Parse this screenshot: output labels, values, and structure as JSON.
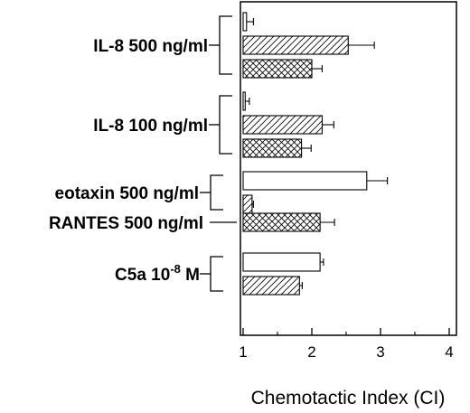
{
  "chart_data": {
    "type": "bar",
    "orientation": "horizontal",
    "xlabel": "Chemotactic Index (CI)",
    "xlim": [
      1,
      4
    ],
    "x_ticks": [
      "1",
      "2",
      "3",
      "4"
    ],
    "grid": false,
    "legend": "none",
    "groups": [
      {
        "label": "IL-8 500 ng/ml",
        "bars": [
          {
            "value": 1.05,
            "error": 0.1,
            "pattern": "open"
          },
          {
            "value": 2.53,
            "error": 0.38,
            "pattern": "diagonal-hatch"
          },
          {
            "value": 2.0,
            "error": 0.15,
            "pattern": "cross-hatch"
          }
        ]
      },
      {
        "label": "IL-8 100 ng/ml",
        "bars": [
          {
            "value": 1.03,
            "error": 0.06,
            "pattern": "open"
          },
          {
            "value": 2.15,
            "error": 0.17,
            "pattern": "diagonal-hatch"
          },
          {
            "value": 1.85,
            "error": 0.14,
            "pattern": "cross-hatch"
          }
        ]
      },
      {
        "label": "eotaxin 500 ng/ml",
        "bars": [
          {
            "value": 2.8,
            "error": 0.3,
            "pattern": "open"
          },
          {
            "value": 1.13,
            "error": 0.02,
            "pattern": "diagonal-hatch"
          }
        ]
      },
      {
        "label": "RANTES 500 ng/ml",
        "bars": [
          {
            "value": 2.12,
            "error": 0.21,
            "pattern": "cross-hatch"
          }
        ]
      },
      {
        "label_main": "C5a 10",
        "label_sup": "-8",
        "label_unit": " M",
        "bars": [
          {
            "value": 2.12,
            "error": 0.05,
            "pattern": "open"
          },
          {
            "value": 1.82,
            "error": 0.04,
            "pattern": "diagonal-hatch"
          }
        ]
      }
    ]
  }
}
